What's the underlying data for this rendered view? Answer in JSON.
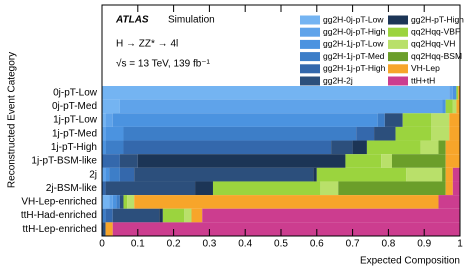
{
  "chart_data": {
    "type": "stacked-barh",
    "brand": "ATLAS",
    "subtitle": "Simulation",
    "process": "H → ZZ* → 4l",
    "energy": "√s = 13 TeV, 139 fb⁻¹",
    "xlabel": "Expected Composition",
    "ylabel": "Reconstructed Event Category",
    "categories": [
      "0j-pT-Low",
      "0j-pT-Med",
      "1j-pT-Low",
      "1j-pT-Med",
      "1j-pT-High",
      "1j-pT-BSM-like",
      "2j",
      "2j-BSM-like",
      "VH-Lep-enriched",
      "ttH-Had-enriched",
      "ttH-Lep-enriched"
    ],
    "series": [
      {
        "name": "gg2H-0j-pT-Low",
        "color": "#74b4f2",
        "values": [
          0.97,
          0.05,
          0.01,
          0,
          0,
          0,
          0,
          0,
          0.02,
          0,
          0
        ]
      },
      {
        "name": "gg2H-0j-pT-High",
        "color": "#5fa3ea",
        "values": [
          0.01,
          0.9,
          0.02,
          0.01,
          0,
          0,
          0.01,
          0,
          0.01,
          0,
          0
        ]
      },
      {
        "name": "gg2H-1j-pT-Low",
        "color": "#4b93e0",
        "values": [
          0.01,
          0.01,
          0.74,
          0.05,
          0.01,
          0,
          0.01,
          0,
          0.01,
          0,
          0
        ]
      },
      {
        "name": "gg2H-1j-pT-Med",
        "color": "#3d7ec8",
        "values": [
          0,
          0,
          0.02,
          0.65,
          0.05,
          0,
          0.03,
          0,
          0.01,
          0.01,
          0
        ]
      },
      {
        "name": "gg2H-1j-pT-High",
        "color": "#3468ac",
        "values": [
          0,
          0,
          0,
          0.05,
          0.58,
          0.05,
          0.04,
          0.01,
          0,
          0.02,
          0
        ]
      },
      {
        "name": "gg2H-2j",
        "color": "#2c4f7c",
        "values": [
          0,
          0,
          0.05,
          0.06,
          0.06,
          0.05,
          0.5,
          0.25,
          0.01,
          0.13,
          0.01
        ]
      },
      {
        "name": "gg2H-pT-High",
        "color": "#1c3556",
        "values": [
          0,
          0,
          0,
          0,
          0.04,
          0.58,
          0.01,
          0.05,
          0,
          0.01,
          0
        ]
      },
      {
        "name": "qq2Hqq-VBF",
        "color": "#9bd43e",
        "values": [
          0.005,
          0.02,
          0.08,
          0.1,
          0.15,
          0.1,
          0.25,
          0.3,
          0.01,
          0.06,
          0
        ]
      },
      {
        "name": "qq2Hqq-VH",
        "color": "#b9e06a",
        "values": [
          0,
          0.01,
          0.05,
          0.05,
          0.05,
          0.03,
          0.1,
          0.05,
          0.02,
          0.02,
          0
        ]
      },
      {
        "name": "qq2Hqq-BSM",
        "color": "#6b9e2a",
        "values": [
          0,
          0,
          0,
          0,
          0.02,
          0.15,
          0.01,
          0.3,
          0,
          0,
          0
        ]
      },
      {
        "name": "VH-Lep",
        "color": "#f7a52a",
        "values": [
          0.005,
          0.01,
          0.03,
          0.03,
          0.04,
          0.04,
          0.02,
          0.02,
          0.85,
          0.03,
          0.02
        ]
      },
      {
        "name": "ttH+tH",
        "color": "#cc3d8f",
        "values": [
          0,
          0,
          0,
          0,
          0,
          0,
          0.02,
          0.02,
          0.06,
          0.72,
          0.97
        ]
      }
    ],
    "xlim": [
      0,
      1
    ],
    "xticks": [
      0,
      0.1,
      0.2,
      0.3,
      0.4,
      0.5,
      0.6,
      0.7,
      0.8,
      0.9,
      1
    ]
  }
}
